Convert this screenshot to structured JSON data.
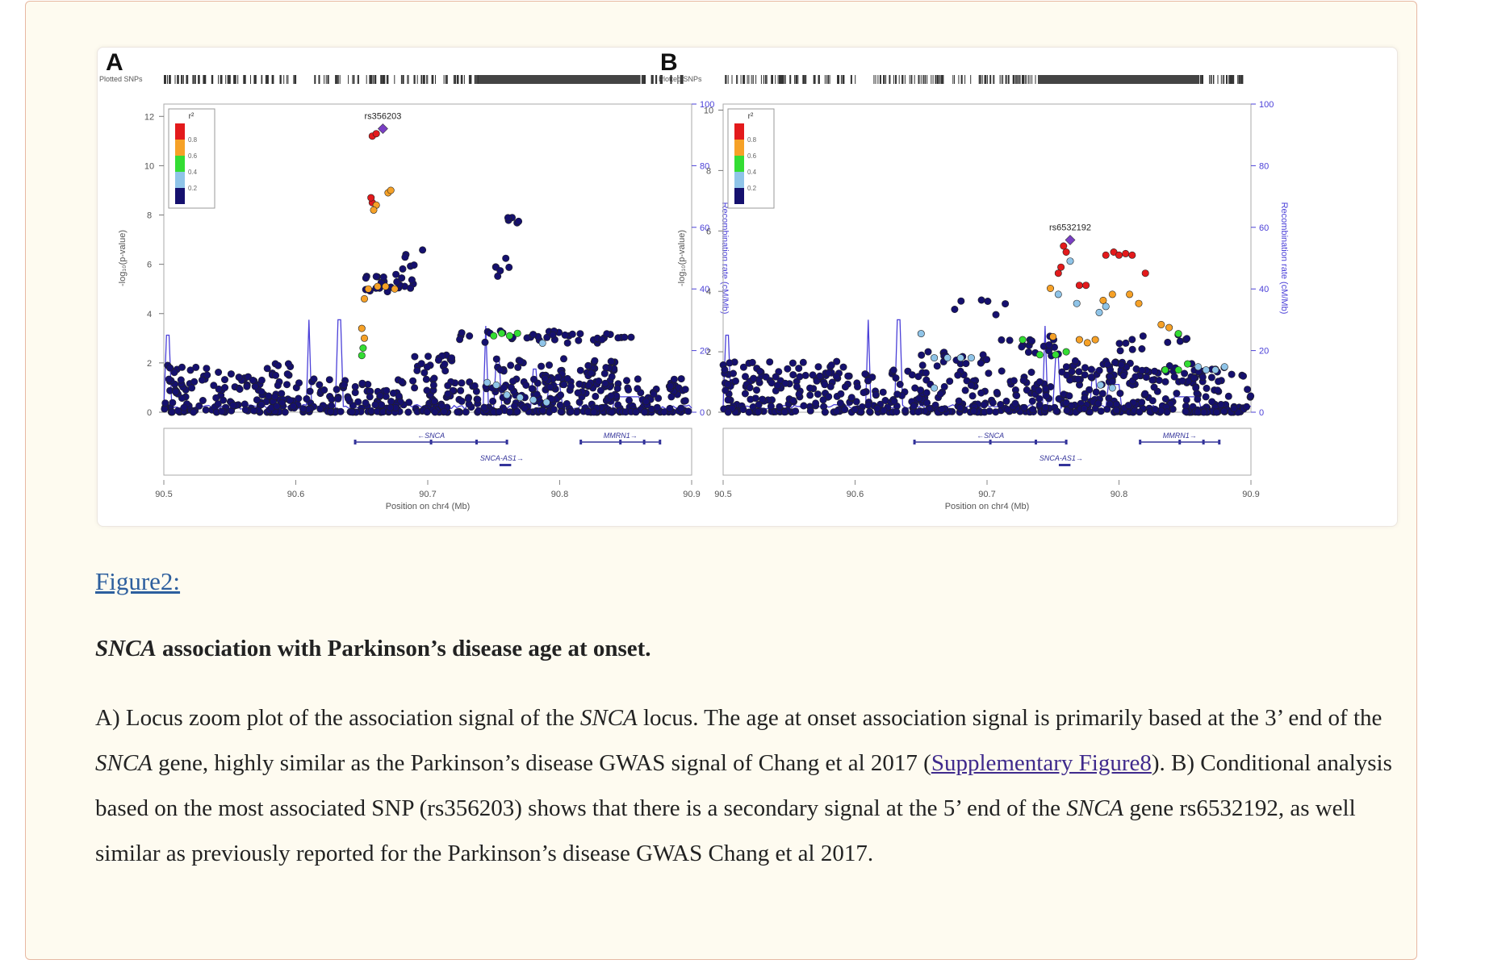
{
  "figure": {
    "link_text": "Figure2:",
    "title_gene": "SNCA",
    "title_rest": " association with Parkinson’s disease age at onset.",
    "caption": {
      "p1": "A) Locus zoom plot of the association signal of the ",
      "gene1": "SNCA",
      "p2": " locus. The age at onset association signal is primarily based at the 3’ end of the ",
      "gene2": "SNCA",
      "p3": " gene, highly similar as the Parkinson’s disease GWAS signal of Chang et al 2017 (",
      "link": "Supplementary Figure8",
      "p4": "). B) Conditional analysis based on the most associated SNP (rs356203) shows that there is a secondary signal at the 5’ end of the ",
      "gene3": "SNCA",
      "p5": " gene rs6532192, as well similar as previously reported for the Parkinson’s disease GWAS Chang et al 2017."
    }
  },
  "chart_data": [
    {
      "type": "scatter",
      "panel_label": "A",
      "plotted_snps_label": "Plotted SNPs",
      "ylabel": "-log₁₀(p-value)",
      "y2label": "Recombination rate (cM/Mb)",
      "xlabel": "Position on chr4 (Mb)",
      "xlim": [
        90.5,
        90.9
      ],
      "ylim": [
        0,
        12.5
      ],
      "y2lim": [
        0,
        100
      ],
      "x_ticks": [
        "90.5",
        "90.6",
        "90.7",
        "90.8",
        "90.9"
      ],
      "y_ticks": [
        "0",
        "2",
        "4",
        "6",
        "8",
        "10",
        "12"
      ],
      "y2_ticks": [
        "0",
        "20",
        "40",
        "60",
        "80",
        "100"
      ],
      "legend": {
        "title": "r²",
        "labels": [
          "0.8",
          "0.6",
          "0.4",
          "0.2"
        ],
        "placement": "top-left"
      },
      "lead_snp": {
        "name": "rs356203",
        "x": 90.666,
        "y": 11.5
      },
      "genes": [
        {
          "name": "←SNCA",
          "start": 90.645,
          "end": 90.76,
          "row": 1
        },
        {
          "name": "SNCA-AS1→",
          "start": 90.755,
          "end": 90.762,
          "row": 2
        },
        {
          "name": "MMRN1→",
          "start": 90.816,
          "end": 90.876,
          "row": 1
        }
      ],
      "highlight_points": [
        {
          "x": 90.658,
          "y": 11.2,
          "r2": "0.8-1"
        },
        {
          "x": 90.661,
          "y": 11.3,
          "r2": "0.8-1"
        },
        {
          "x": 90.658,
          "y": 8.5,
          "r2": "0.8-1"
        },
        {
          "x": 90.657,
          "y": 8.7,
          "r2": "0.8-1"
        },
        {
          "x": 90.661,
          "y": 8.4,
          "r2": "0.6-0.8"
        },
        {
          "x": 90.659,
          "y": 8.2,
          "r2": "0.6-0.8"
        },
        {
          "x": 90.67,
          "y": 8.9,
          "r2": "0.6-0.8"
        },
        {
          "x": 90.672,
          "y": 9.0,
          "r2": "0.6-0.8"
        },
        {
          "x": 90.655,
          "y": 5.0,
          "r2": "0.6-0.8"
        },
        {
          "x": 90.662,
          "y": 5.1,
          "r2": "0.6-0.8"
        },
        {
          "x": 90.668,
          "y": 5.1,
          "r2": "0.6-0.8"
        },
        {
          "x": 90.675,
          "y": 5.0,
          "r2": "0.6-0.8"
        },
        {
          "x": 90.652,
          "y": 4.6,
          "r2": "0.6-0.8"
        },
        {
          "x": 90.65,
          "y": 3.4,
          "r2": "0.6-0.8"
        },
        {
          "x": 90.652,
          "y": 3.0,
          "r2": "0.6-0.8"
        },
        {
          "x": 90.651,
          "y": 2.6,
          "r2": "0.4-0.6"
        },
        {
          "x": 90.65,
          "y": 2.3,
          "r2": "0.4-0.6"
        },
        {
          "x": 90.75,
          "y": 3.1,
          "r2": "0.4-0.6"
        },
        {
          "x": 90.756,
          "y": 3.2,
          "r2": "0.4-0.6"
        },
        {
          "x": 90.762,
          "y": 3.1,
          "r2": "0.4-0.6"
        },
        {
          "x": 90.768,
          "y": 3.2,
          "r2": "0.4-0.6"
        },
        {
          "x": 90.745,
          "y": 1.2,
          "r2": "0.2-0.4"
        },
        {
          "x": 90.752,
          "y": 1.1,
          "r2": "0.2-0.4"
        },
        {
          "x": 90.76,
          "y": 0.7,
          "r2": "0.2-0.4"
        },
        {
          "x": 90.77,
          "y": 0.6,
          "r2": "0.2-0.4"
        },
        {
          "x": 90.78,
          "y": 0.5,
          "r2": "0.2-0.4"
        },
        {
          "x": 90.787,
          "y": 2.8,
          "r2": "0.2-0.4"
        },
        {
          "x": 90.79,
          "y": 0.4,
          "r2": "0.2-0.4"
        }
      ]
    },
    {
      "type": "scatter",
      "panel_label": "B",
      "plotted_snps_label": "Plotted SNPs",
      "ylabel": "-log₁₀(p-value)",
      "y2label": "Recombination rate (cM/Mb)",
      "xlabel": "Position on chr4 (Mb)",
      "xlim": [
        90.5,
        90.9
      ],
      "ylim": [
        0,
        10.2
      ],
      "y2lim": [
        0,
        100
      ],
      "x_ticks": [
        "90.5",
        "90.6",
        "90.7",
        "90.8",
        "90.9"
      ],
      "y_ticks": [
        "0",
        "2",
        "4",
        "6",
        "8",
        "10"
      ],
      "y2_ticks": [
        "0",
        "20",
        "40",
        "60",
        "80",
        "100"
      ],
      "legend": {
        "title": "r²",
        "labels": [
          "0.8",
          "0.6",
          "0.4",
          "0.2"
        ],
        "placement": "top-left"
      },
      "lead_snp": {
        "name": "rs6532192",
        "x": 90.763,
        "y": 5.7
      },
      "genes": [
        {
          "name": "←SNCA",
          "start": 90.645,
          "end": 90.76,
          "row": 1
        },
        {
          "name": "SNCA-AS1→",
          "start": 90.755,
          "end": 90.762,
          "row": 2
        },
        {
          "name": "MMRN1→",
          "start": 90.816,
          "end": 90.876,
          "row": 1
        }
      ],
      "highlight_points": [
        {
          "x": 90.758,
          "y": 5.5,
          "r2": "0.8-1"
        },
        {
          "x": 90.76,
          "y": 5.3,
          "r2": "0.8-1"
        },
        {
          "x": 90.756,
          "y": 4.8,
          "r2": "0.8-1"
        },
        {
          "x": 90.754,
          "y": 4.6,
          "r2": "0.8-1"
        },
        {
          "x": 90.79,
          "y": 5.2,
          "r2": "0.8-1"
        },
        {
          "x": 90.796,
          "y": 5.3,
          "r2": "0.8-1"
        },
        {
          "x": 90.8,
          "y": 5.2,
          "r2": "0.8-1"
        },
        {
          "x": 90.805,
          "y": 5.25,
          "r2": "0.8-1"
        },
        {
          "x": 90.81,
          "y": 5.2,
          "r2": "0.8-1"
        },
        {
          "x": 90.82,
          "y": 4.6,
          "r2": "0.8-1"
        },
        {
          "x": 90.77,
          "y": 4.2,
          "r2": "0.8-1"
        },
        {
          "x": 90.775,
          "y": 4.2,
          "r2": "0.8-1"
        },
        {
          "x": 90.748,
          "y": 4.1,
          "r2": "0.6-0.8"
        },
        {
          "x": 90.75,
          "y": 2.5,
          "r2": "0.6-0.8"
        },
        {
          "x": 90.77,
          "y": 2.4,
          "r2": "0.6-0.8"
        },
        {
          "x": 90.776,
          "y": 2.3,
          "r2": "0.6-0.8"
        },
        {
          "x": 90.782,
          "y": 2.4,
          "r2": "0.6-0.8"
        },
        {
          "x": 90.788,
          "y": 3.7,
          "r2": "0.6-0.8"
        },
        {
          "x": 90.795,
          "y": 3.9,
          "r2": "0.6-0.8"
        },
        {
          "x": 90.808,
          "y": 3.9,
          "r2": "0.6-0.8"
        },
        {
          "x": 90.815,
          "y": 3.6,
          "r2": "0.6-0.8"
        },
        {
          "x": 90.832,
          "y": 2.9,
          "r2": "0.6-0.8"
        },
        {
          "x": 90.838,
          "y": 2.8,
          "r2": "0.6-0.8"
        },
        {
          "x": 90.727,
          "y": 2.4,
          "r2": "0.4-0.6"
        },
        {
          "x": 90.74,
          "y": 1.9,
          "r2": "0.4-0.6"
        },
        {
          "x": 90.752,
          "y": 1.9,
          "r2": "0.4-0.6"
        },
        {
          "x": 90.76,
          "y": 2.0,
          "r2": "0.4-0.6"
        },
        {
          "x": 90.845,
          "y": 2.6,
          "r2": "0.4-0.6"
        },
        {
          "x": 90.835,
          "y": 1.4,
          "r2": "0.4-0.6"
        },
        {
          "x": 90.845,
          "y": 1.4,
          "r2": "0.4-0.6"
        },
        {
          "x": 90.852,
          "y": 1.6,
          "r2": "0.4-0.6"
        },
        {
          "x": 90.763,
          "y": 5.0,
          "r2": "0.2-0.4"
        },
        {
          "x": 90.754,
          "y": 3.9,
          "r2": "0.2-0.4"
        },
        {
          "x": 90.768,
          "y": 3.6,
          "r2": "0.2-0.4"
        },
        {
          "x": 90.785,
          "y": 3.3,
          "r2": "0.2-0.4"
        },
        {
          "x": 90.79,
          "y": 3.5,
          "r2": "0.2-0.4"
        },
        {
          "x": 90.65,
          "y": 2.6,
          "r2": "0.2-0.4"
        },
        {
          "x": 90.66,
          "y": 1.8,
          "r2": "0.2-0.4"
        },
        {
          "x": 90.67,
          "y": 1.8,
          "r2": "0.2-0.4"
        },
        {
          "x": 90.68,
          "y": 1.8,
          "r2": "0.2-0.4"
        },
        {
          "x": 90.688,
          "y": 1.8,
          "r2": "0.2-0.4"
        },
        {
          "x": 90.86,
          "y": 1.5,
          "r2": "0.2-0.4"
        },
        {
          "x": 90.866,
          "y": 1.4,
          "r2": "0.2-0.4"
        },
        {
          "x": 90.873,
          "y": 1.4,
          "r2": "0.2-0.4"
        },
        {
          "x": 90.88,
          "y": 1.5,
          "r2": "0.2-0.4"
        },
        {
          "x": 90.786,
          "y": 0.9,
          "r2": "0.2-0.4"
        },
        {
          "x": 90.795,
          "y": 0.8,
          "r2": "0.2-0.4"
        },
        {
          "x": 90.66,
          "y": 0.8,
          "r2": "0.2-0.4"
        }
      ]
    }
  ],
  "colors": {
    "r2_0.8-1": "#e31a1c",
    "r2_0.6-0.8": "#f6a127",
    "r2_0.4-0.6": "#33dd33",
    "r2_0.2-0.4": "#8fc4e8",
    "r2_0-0.2": "#15106e",
    "lead": "#7a3fc4",
    "recomb": "#4b40d8",
    "link": "#2d5f9e"
  }
}
